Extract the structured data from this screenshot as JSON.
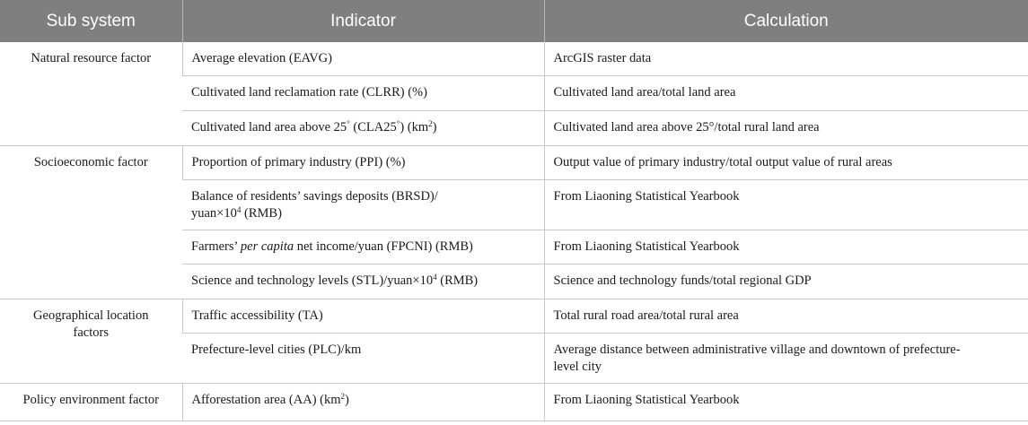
{
  "headers": {
    "sub_system": "Sub system",
    "indicator": "Indicator",
    "calculation": "Calculation"
  },
  "groups": {
    "natural": {
      "name": "Natural resource factor",
      "rows": [
        {
          "indicator": "Average elevation (EAVG)",
          "calculation": "ArcGIS raster data"
        },
        {
          "indicator": "Cultivated land reclamation rate (CLRR) (%)",
          "calculation": "Cultivated land area/total land area"
        },
        {
          "indicator_a": "Cultivated land area above 25",
          "deg1": "°",
          "indicator_b": " (CLA25",
          "deg2": "°",
          "indicator_c": ") (km",
          "sup": "2",
          "indicator_d": ")",
          "calculation": "Cultivated land area above 25°/total rural land area"
        }
      ]
    },
    "socio": {
      "name": "Socioeconomic factor",
      "rows": [
        {
          "indicator": "Proportion of primary industry (PPI) (%)",
          "calculation": "Output value of primary industry/total output value of rural areas"
        },
        {
          "indicator_a": "Balance of residents’ savings deposits (BRSD)/",
          "indicator_b": "yuan×10",
          "sup": "4",
          "indicator_c": " (RMB)",
          "calculation": "From Liaoning Statistical Yearbook"
        },
        {
          "indicator_a": "Farmers’ ",
          "indicator_em": "per capita",
          "indicator_b": " net income/yuan (FPCNI) (RMB)",
          "calculation": "From Liaoning Statistical Yearbook"
        },
        {
          "indicator_a": "Science and technology levels (STL)/yuan×10",
          "sup": "4",
          "indicator_b": " (RMB)",
          "calculation": "Science and technology funds/total regional GDP"
        }
      ]
    },
    "geo": {
      "name_a": "Geographical location",
      "name_b": "factors",
      "rows": [
        {
          "indicator": "Traffic accessibility (TA)",
          "calculation": "Total rural road area/total rural area"
        },
        {
          "indicator": "Prefecture-level cities (PLC)/km",
          "calculation_a": "Average distance between administrative village and downtown of prefecture-",
          "calculation_b": "level city"
        }
      ]
    },
    "policy": {
      "name": "Policy environment factor",
      "rows": [
        {
          "indicator_a": "Afforestation area (AA) (km",
          "sup": "2",
          "indicator_b": ")",
          "calculation": "From Liaoning Statistical Yearbook"
        }
      ]
    }
  }
}
